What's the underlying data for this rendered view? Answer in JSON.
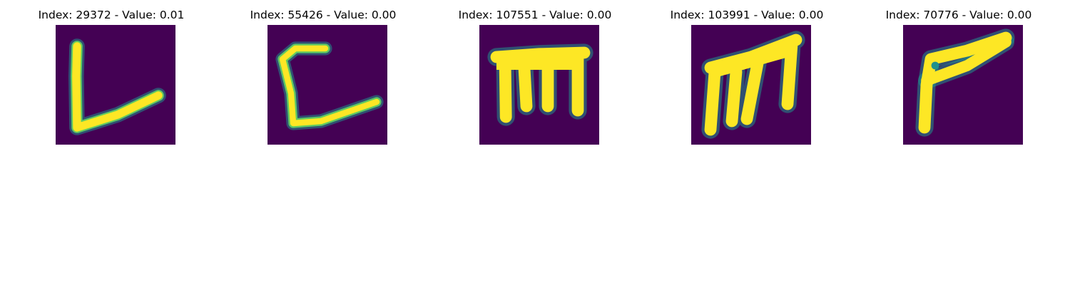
{
  "colors": {
    "background": "#ffffff",
    "image_background": "#440154",
    "image_mid": "#21918c",
    "image_high": "#fde725"
  },
  "panels": [
    {
      "title": "Index: 29372 - Value: 0.01",
      "glyph": "L-shape stroke"
    },
    {
      "title": "Index: 55426 - Value: 0.00",
      "glyph": "C-shape stroke"
    },
    {
      "title": "Index: 107551 - Value: 0.00",
      "glyph": "m-shape stroke"
    },
    {
      "title": "Index: 103991 - Value: 0.00",
      "glyph": "slanted m-shape stroke"
    },
    {
      "title": "Index: 70776 - Value: 0.00",
      "glyph": "r-shape stroke"
    }
  ]
}
